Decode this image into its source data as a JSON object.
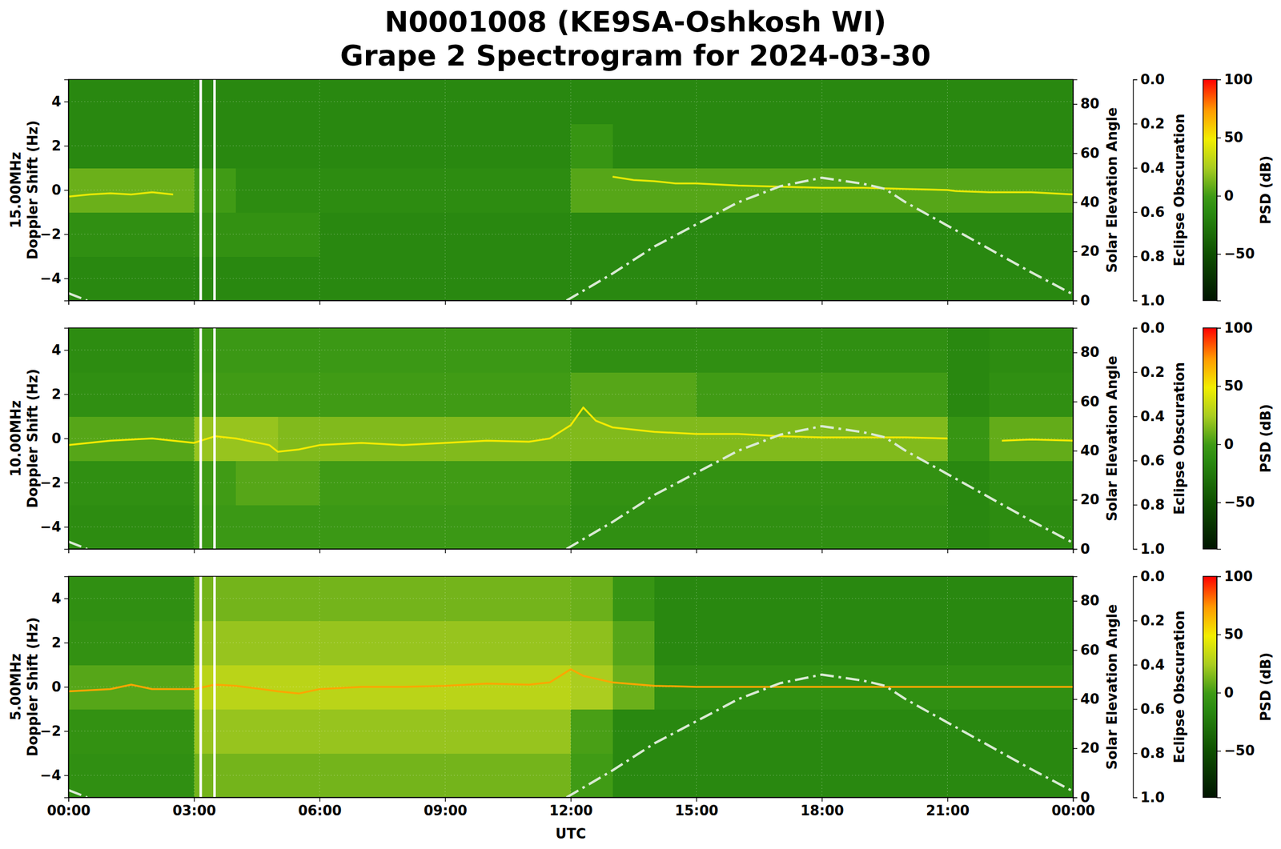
{
  "chart_data": {
    "type": "spectrogram",
    "title": "N0001008 (KE9SA-Oshkosh WI)",
    "subtitle": "Grape 2 Spectrogram for 2024-03-30",
    "xlabel": "UTC",
    "xlim": [
      0,
      24
    ],
    "xticks": [
      {
        "value": 0,
        "label": "00:00"
      },
      {
        "value": 3,
        "label": "03:00"
      },
      {
        "value": 6,
        "label": "06:00"
      },
      {
        "value": 9,
        "label": "09:00"
      },
      {
        "value": 12,
        "label": "12:00"
      },
      {
        "value": 15,
        "label": "15:00"
      },
      {
        "value": 18,
        "label": "18:00"
      },
      {
        "value": 21,
        "label": "21:00"
      },
      {
        "value": 24,
        "label": "00:00"
      }
    ],
    "grid": true,
    "gaps": [
      [
        3.13,
        3.19
      ],
      [
        3.46,
        3.52
      ]
    ],
    "y2label": "Solar Elevation Angle",
    "y2lim": [
      0,
      90
    ],
    "y2ticks": [
      0,
      20,
      40,
      60,
      80
    ],
    "y3label": "Eclipse Obscuration",
    "y3lim": [
      1,
      0
    ],
    "y3ticks": [
      {
        "value": 0,
        "label": "0.0"
      },
      0.2,
      0.4,
      0.6,
      0.8,
      {
        "value": 1,
        "label": "1.0"
      }
    ],
    "colorbar": {
      "label": "PSD (dB)",
      "range": [
        -90,
        100
      ],
      "ticks": [
        {
          "value": -50,
          "label": "−50"
        },
        0,
        50,
        100
      ]
    },
    "cell_x_edges": [
      0,
      1,
      2,
      3,
      4,
      5,
      6,
      7,
      8,
      9,
      10,
      11,
      12,
      13,
      14,
      15,
      16,
      17,
      18,
      19,
      20,
      21,
      22,
      23,
      24
    ],
    "cell_y_edges": [
      -5,
      -3,
      -1,
      1,
      3,
      5
    ],
    "panels": [
      {
        "ylabel": [
          "15.00MHz",
          "Doppler Shift (Hz)"
        ],
        "ylim": [
          -5,
          5
        ],
        "yticks": [
          {
            "value": -4,
            "label": "−4"
          },
          {
            "value": -2,
            "label": "−2"
          },
          0,
          2,
          4
        ],
        "psd_cells": [
          [
            -15,
            -15,
            -15,
            -15,
            -15,
            -15,
            -15,
            -15,
            -15,
            -15,
            -15,
            -15,
            -15,
            -15,
            -15,
            -15,
            -15,
            -15,
            -15,
            -15,
            -15,
            -15,
            -15,
            -15
          ],
          [
            -10,
            -10,
            -10,
            -8,
            -8,
            -8,
            -15,
            -15,
            -15,
            -15,
            -15,
            -15,
            -15,
            -15,
            -15,
            -15,
            -15,
            -15,
            -15,
            -15,
            -15,
            -15,
            -15,
            -15
          ],
          [
            10,
            10,
            10,
            0,
            -12,
            -12,
            -12,
            -12,
            -12,
            -12,
            -12,
            -12,
            5,
            5,
            5,
            5,
            5,
            5,
            5,
            5,
            5,
            5,
            5,
            5
          ],
          [
            -15,
            -15,
            -15,
            -15,
            -15,
            -15,
            -15,
            -15,
            -15,
            -15,
            -15,
            -15,
            -5,
            -15,
            -15,
            -15,
            -15,
            -15,
            -15,
            -15,
            -15,
            -15,
            -15,
            -15
          ],
          [
            -15,
            -15,
            -15,
            -15,
            -15,
            -15,
            -15,
            -15,
            -15,
            -15,
            -15,
            -15,
            -15,
            -15,
            -15,
            -15,
            -15,
            -15,
            -15,
            -15,
            -15,
            -15,
            -15,
            -15
          ]
        ],
        "series": [
          {
            "x": [
              0,
              0.5,
              1,
              1.5,
              2,
              2.5,
              7,
              13,
              13.5,
              14,
              14.5,
              15,
              16,
              17,
              18,
              19,
              20,
              21,
              21.2,
              22,
              23,
              24
            ],
            "values": [
              -0.3,
              -0.2,
              -0.15,
              -0.2,
              -0.1,
              -0.2,
              null,
              0.6,
              0.45,
              0.4,
              0.3,
              0.3,
              0.2,
              0.15,
              0.1,
              0.1,
              0.05,
              0,
              -0.05,
              -0.1,
              -0.1,
              -0.2
            ],
            "psd": 45,
            "line_style": "solid"
          },
          {
            "x": [
              0,
              0.45,
              6,
              11.9,
              13,
              14,
              15,
              16,
              17,
              18,
              19,
              19.5,
              20,
              21,
              22,
              23,
              24
            ],
            "values": [
              3,
              0,
              null,
              0,
              11,
              22,
              31,
              40,
              46.5,
              50,
              47.5,
              45.5,
              40,
              30.5,
              21,
              11.5,
              2.5
            ],
            "axis": "y2",
            "color": "#d9ead3",
            "line_style": "dashdot"
          }
        ]
      },
      {
        "ylabel": [
          "10.00MHz",
          "Doppler Shift (Hz)"
        ],
        "ylim": [
          -5,
          5
        ],
        "yticks": [
          {
            "value": -4,
            "label": "−4"
          },
          {
            "value": -2,
            "label": "−2"
          },
          0,
          2,
          4
        ],
        "psd_cells": [
          [
            -12,
            -12,
            -12,
            -2,
            -2,
            -2,
            -2,
            -2,
            -2,
            -2,
            -2,
            -2,
            -10,
            -10,
            -10,
            -10,
            -10,
            -10,
            -10,
            -10,
            -10,
            -15,
            -12,
            -12
          ],
          [
            -10,
            -10,
            -10,
            0,
            5,
            5,
            0,
            0,
            0,
            0,
            0,
            0,
            -8,
            -8,
            -8,
            -8,
            -8,
            -8,
            -8,
            -8,
            -8,
            -15,
            -10,
            -10
          ],
          [
            5,
            5,
            5,
            20,
            20,
            15,
            15,
            15,
            15,
            15,
            15,
            15,
            15,
            15,
            15,
            15,
            15,
            15,
            15,
            15,
            15,
            -5,
            8,
            8
          ],
          [
            -10,
            -10,
            -10,
            0,
            0,
            0,
            0,
            0,
            0,
            0,
            0,
            0,
            5,
            5,
            5,
            0,
            0,
            0,
            0,
            0,
            0,
            -15,
            -10,
            -10
          ],
          [
            -12,
            -12,
            -12,
            -2,
            -2,
            -2,
            -2,
            -2,
            -2,
            -2,
            -2,
            -2,
            -10,
            -10,
            -10,
            -10,
            -10,
            -10,
            -10,
            -10,
            -10,
            -15,
            -12,
            -12
          ]
        ],
        "series": [
          {
            "x": [
              0,
              1,
              2,
              3,
              3.5,
              4,
              4.8,
              5,
              5.5,
              6,
              7,
              8,
              9,
              10,
              11,
              11.5,
              12,
              12.3,
              12.6,
              13,
              14,
              15,
              16,
              17,
              18,
              19,
              20,
              21,
              21.6,
              22.3,
              23,
              24
            ],
            "values": [
              -0.3,
              -0.1,
              0,
              -0.2,
              0.1,
              0,
              -0.3,
              -0.6,
              -0.5,
              -0.3,
              -0.2,
              -0.3,
              -0.2,
              -0.1,
              -0.15,
              0,
              0.6,
              1.4,
              0.8,
              0.5,
              0.3,
              0.2,
              0.2,
              0.1,
              0.05,
              0.05,
              0.05,
              0,
              null,
              -0.1,
              -0.05,
              -0.1
            ],
            "psd": 50,
            "line_style": "solid"
          },
          {
            "x": [
              0,
              0.45,
              6,
              11.9,
              13,
              14,
              15,
              16,
              17,
              18,
              19,
              19.5,
              20,
              21,
              22,
              23,
              24
            ],
            "values": [
              3,
              0,
              null,
              0,
              11,
              22,
              31,
              40,
              46.5,
              50,
              47.5,
              45.5,
              40,
              30.5,
              21,
              11.5,
              2.5
            ],
            "axis": "y2",
            "color": "#d9ead3",
            "line_style": "dashdot"
          }
        ]
      },
      {
        "ylabel": [
          "5.00MHz",
          "Doppler Shift (Hz)"
        ],
        "ylim": [
          -5,
          5
        ],
        "yticks": [
          {
            "value": -4,
            "label": "−4"
          },
          {
            "value": -2,
            "label": "−2"
          },
          0,
          2,
          4
        ],
        "psd_cells": [
          [
            -10,
            -10,
            -10,
            12,
            12,
            12,
            12,
            12,
            12,
            12,
            12,
            12,
            0,
            -15,
            -15,
            -15,
            -15,
            -15,
            -15,
            -15,
            -15,
            -15,
            -15,
            -15
          ],
          [
            -8,
            -8,
            -8,
            20,
            20,
            20,
            20,
            20,
            20,
            20,
            20,
            20,
            2,
            -15,
            -15,
            -15,
            -15,
            -15,
            -15,
            -15,
            -15,
            -15,
            -15,
            -15
          ],
          [
            5,
            5,
            5,
            30,
            30,
            30,
            30,
            30,
            30,
            30,
            30,
            30,
            25,
            10,
            -10,
            -10,
            -10,
            -10,
            -10,
            -10,
            -10,
            -10,
            -10,
            -10
          ],
          [
            -8,
            -8,
            -8,
            20,
            20,
            20,
            20,
            20,
            20,
            20,
            20,
            20,
            18,
            5,
            -15,
            -15,
            -15,
            -15,
            -15,
            -15,
            -15,
            -15,
            -15,
            -15
          ],
          [
            -10,
            -10,
            -10,
            12,
            12,
            12,
            12,
            12,
            12,
            12,
            12,
            12,
            10,
            -5,
            -15,
            -15,
            -15,
            -15,
            -15,
            -15,
            -15,
            -15,
            -15,
            -15
          ]
        ],
        "series": [
          {
            "x": [
              0,
              1,
              1.5,
              2,
              3,
              3.5,
              4,
              5,
              5.5,
              6,
              7,
              8,
              9,
              10,
              11,
              11.5,
              12,
              12.3,
              13,
              14,
              15,
              18,
              21,
              22,
              24
            ],
            "values": [
              -0.2,
              -0.1,
              0.1,
              -0.1,
              -0.1,
              0.1,
              0.05,
              -0.2,
              -0.3,
              -0.1,
              0,
              0,
              0.05,
              0.15,
              0.1,
              0.2,
              0.8,
              0.5,
              0.2,
              0.05,
              0,
              0,
              0,
              0,
              0
            ],
            "psd": 70,
            "line_style": "solid"
          },
          {
            "x": [
              0,
              0.45,
              6,
              11.9,
              13,
              14,
              15,
              16,
              17,
              18,
              19,
              19.5,
              20,
              21,
              22,
              23,
              24
            ],
            "values": [
              3,
              0,
              null,
              0,
              11,
              22,
              31,
              40,
              46.5,
              50,
              47.5,
              45.5,
              40,
              30.5,
              21,
              11.5,
              2.5
            ],
            "axis": "y2",
            "color": "#d9ead3",
            "line_style": "dashdot"
          }
        ]
      }
    ]
  }
}
